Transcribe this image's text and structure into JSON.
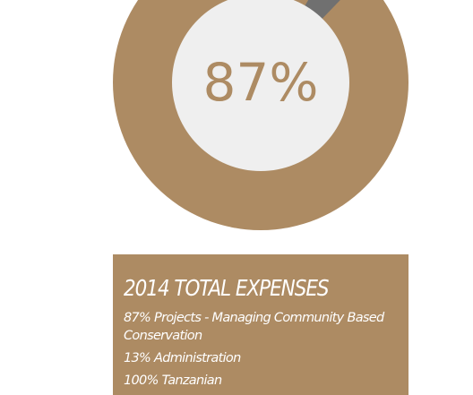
{
  "colors": {
    "ring": "#ad8b63",
    "highlight": "#707070",
    "center": "#efefef",
    "card": "#ad8b63",
    "card_text": "#ffffff"
  },
  "chart_data": {
    "type": "pie",
    "style": "donut",
    "center_label": "87%",
    "categories": [
      "Projects",
      "Administration"
    ],
    "values": [
      87,
      13
    ],
    "highlight_wedge": "small gray sliver visible at top-right"
  },
  "card": {
    "title": "2014 TOTAL EXPENSES",
    "lines": [
      "87% Projects - Managing Community Based Conservation",
      "13% Administration",
      "100% Tanzanian"
    ],
    "line0_parts": [
      "87% Projects - Managing Community Based",
      "Conservation"
    ]
  }
}
